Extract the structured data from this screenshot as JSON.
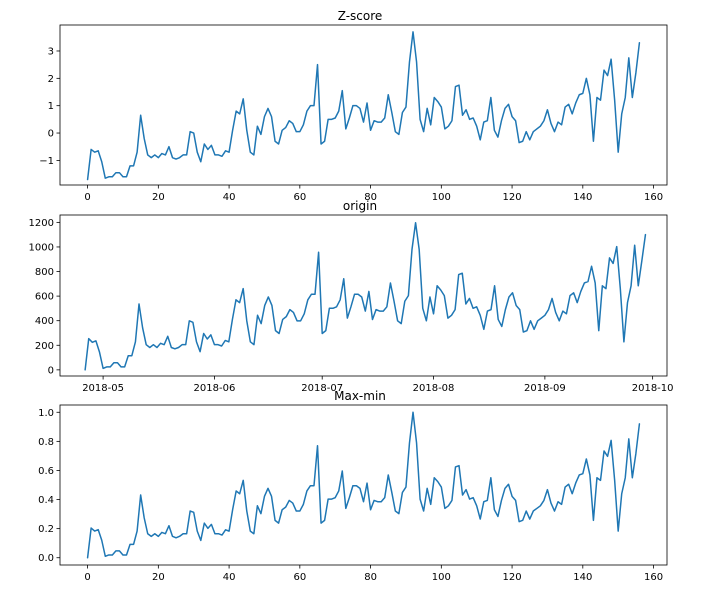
{
  "chart_data": [
    {
      "type": "line",
      "title": "Z-score",
      "xlabel": "",
      "ylabel": "",
      "xlim": [
        -7.8,
        163.8
      ],
      "ylim": [
        -1.9,
        3.95
      ],
      "xticks": [
        0,
        20,
        40,
        60,
        80,
        100,
        120,
        140,
        160
      ],
      "xtick_labels": [
        "0",
        "20",
        "40",
        "60",
        "80",
        "100",
        "120",
        "140",
        "160"
      ],
      "yticks": [
        -1,
        0,
        1,
        2,
        3
      ],
      "ytick_labels": [
        "−1",
        "0",
        "1",
        "2",
        "3"
      ],
      "grid": false,
      "color": "#1f77b4",
      "series": [
        {
          "x_start": 0,
          "x_step": 1,
          "values": [
            -1.7,
            -0.6,
            -0.7,
            -0.65,
            -1.05,
            -1.65,
            -1.6,
            -1.6,
            -1.45,
            -1.45,
            -1.6,
            -1.6,
            -1.2,
            -1.2,
            -0.7,
            0.65,
            -0.2,
            -0.8,
            -0.9,
            -0.8,
            -0.9,
            -0.75,
            -0.8,
            -0.5,
            -0.9,
            -0.95,
            -0.9,
            -0.8,
            -0.8,
            0.05,
            0.0,
            -0.7,
            -1.05,
            -0.4,
            -0.6,
            -0.45,
            -0.8,
            -0.8,
            -0.85,
            -0.65,
            -0.7,
            0.1,
            0.8,
            0.7,
            1.25,
            0.1,
            -0.7,
            -0.8,
            0.25,
            -0.05,
            0.6,
            0.9,
            0.6,
            -0.3,
            -0.4,
            0.1,
            0.2,
            0.45,
            0.35,
            0.05,
            0.05,
            0.3,
            0.8,
            1.0,
            1.0,
            2.5,
            -0.4,
            -0.3,
            0.5,
            0.5,
            0.55,
            0.8,
            1.55,
            0.15,
            0.55,
            1.0,
            1.0,
            0.9,
            0.4,
            1.1,
            0.1,
            0.45,
            0.4,
            0.4,
            0.55,
            1.4,
            0.75,
            0.05,
            -0.05,
            0.75,
            0.95,
            2.6,
            3.7,
            2.6,
            0.5,
            0.05,
            0.9,
            0.3,
            1.3,
            1.15,
            0.95,
            0.15,
            0.25,
            0.45,
            1.7,
            1.75,
            0.65,
            0.85,
            0.5,
            0.55,
            0.25,
            -0.25,
            0.4,
            0.45,
            1.3,
            0.1,
            -0.15,
            0.45,
            0.9,
            1.05,
            0.6,
            0.45,
            -0.35,
            -0.3,
            0.05,
            -0.25,
            0.05,
            0.15,
            0.25,
            0.45,
            0.85,
            0.35,
            0.05,
            0.4,
            0.3,
            0.95,
            1.05,
            0.7,
            1.1,
            1.4,
            1.45,
            2.0,
            1.4,
            -0.3,
            1.3,
            1.2,
            2.3,
            2.1,
            2.7,
            1.2,
            -0.7,
            0.7,
            1.3,
            2.75,
            1.3,
            2.2,
            3.3
          ]
        }
      ]
    },
    {
      "type": "line",
      "title": "origin",
      "xlabel": "",
      "ylabel": "",
      "x_type": "date",
      "xlim": [
        "2018-04-19",
        "2018-10-05"
      ],
      "ylim": [
        -50,
        1260
      ],
      "xticks": [
        "2018-05-01",
        "2018-06-01",
        "2018-07-01",
        "2018-08-01",
        "2018-09-01",
        "2018-10-01"
      ],
      "xtick_labels": [
        "2018-05",
        "2018-06",
        "2018-07",
        "2018-08",
        "2018-09",
        "2018-10"
      ],
      "yticks": [
        0,
        200,
        400,
        600,
        800,
        1000,
        1200
      ],
      "ytick_labels": [
        "0",
        "200",
        "400",
        "600",
        "800",
        "1000",
        "1200"
      ],
      "grid": false,
      "color": "#1f77b4",
      "series": [
        {
          "x_start": "2018-04-26",
          "x_step_days": 1,
          "values": [
            0,
            254,
            224,
            236,
            144,
            12,
            24,
            24,
            58,
            58,
            24,
            24,
            115,
            115,
            228,
            536,
            342,
            205,
            182,
            205,
            182,
            216,
            205,
            273,
            182,
            171,
            182,
            205,
            205,
            399,
            387,
            228,
            148,
            296,
            251,
            285,
            205,
            205,
            194,
            239,
            228,
            410,
            570,
            547,
            661,
            399,
            228,
            205,
            444,
            376,
            524,
            593,
            524,
            319,
            296,
            410,
            433,
            490,
            467,
            399,
            399,
            456,
            570,
            615,
            615,
            957,
            296,
            319,
            501,
            501,
            513,
            570,
            741,
            421,
            513,
            615,
            615,
            593,
            478,
            638,
            410,
            490,
            478,
            478,
            513,
            707,
            558,
            399,
            376,
            558,
            604,
            980,
            1197,
            980,
            501,
            399,
            593,
            456,
            684,
            650,
            604,
            421,
            444,
            490,
            775,
            786,
            536,
            581,
            501,
            513,
            444,
            330,
            478,
            490,
            684,
            410,
            353,
            490,
            593,
            627,
            524,
            490,
            308,
            319,
            399,
            330,
            399,
            421,
            444,
            490,
            581,
            467,
            399,
            478,
            456,
            604,
            627,
            547,
            638,
            707,
            718,
            843,
            707,
            319,
            684,
            661,
            911,
            866,
            1003,
            661,
            228,
            547,
            684,
            1014,
            684,
            889,
            1100
          ]
        }
      ]
    },
    {
      "type": "line",
      "title": "Max-min",
      "xlabel": "",
      "ylabel": "",
      "xlim": [
        -7.8,
        163.8
      ],
      "ylim": [
        -0.05,
        1.05
      ],
      "xticks": [
        0,
        20,
        40,
        60,
        80,
        100,
        120,
        140,
        160
      ],
      "xtick_labels": [
        "0",
        "20",
        "40",
        "60",
        "80",
        "100",
        "120",
        "140",
        "160"
      ],
      "yticks": [
        0.0,
        0.2,
        0.4,
        0.6,
        0.8,
        1.0
      ],
      "ytick_labels": [
        "0.0",
        "0.2",
        "0.4",
        "0.6",
        "0.8",
        "1.0"
      ],
      "grid": false,
      "color": "#1f77b4",
      "series": [
        {
          "x_start": 0,
          "x_step": 1,
          "values": [
            0.0,
            0.204,
            0.183,
            0.193,
            0.12,
            0.01,
            0.019,
            0.019,
            0.047,
            0.047,
            0.019,
            0.019,
            0.092,
            0.092,
            0.183,
            0.431,
            0.274,
            0.165,
            0.147,
            0.165,
            0.147,
            0.174,
            0.165,
            0.22,
            0.147,
            0.137,
            0.147,
            0.165,
            0.165,
            0.321,
            0.312,
            0.183,
            0.119,
            0.238,
            0.202,
            0.229,
            0.165,
            0.165,
            0.156,
            0.192,
            0.183,
            0.33,
            0.459,
            0.44,
            0.532,
            0.321,
            0.183,
            0.165,
            0.357,
            0.303,
            0.422,
            0.477,
            0.422,
            0.257,
            0.238,
            0.33,
            0.348,
            0.394,
            0.376,
            0.321,
            0.321,
            0.367,
            0.459,
            0.495,
            0.495,
            0.77,
            0.238,
            0.257,
            0.403,
            0.403,
            0.413,
            0.459,
            0.596,
            0.339,
            0.413,
            0.495,
            0.495,
            0.477,
            0.385,
            0.513,
            0.33,
            0.394,
            0.385,
            0.385,
            0.413,
            0.569,
            0.449,
            0.321,
            0.303,
            0.449,
            0.486,
            0.789,
            1.0,
            0.789,
            0.403,
            0.321,
            0.477,
            0.367,
            0.55,
            0.523,
            0.486,
            0.339,
            0.357,
            0.394,
            0.624,
            0.633,
            0.431,
            0.468,
            0.403,
            0.413,
            0.357,
            0.266,
            0.385,
            0.394,
            0.55,
            0.33,
            0.284,
            0.394,
            0.477,
            0.505,
            0.422,
            0.394,
            0.248,
            0.257,
            0.321,
            0.266,
            0.321,
            0.339,
            0.357,
            0.394,
            0.468,
            0.376,
            0.321,
            0.385,
            0.367,
            0.486,
            0.505,
            0.44,
            0.514,
            0.569,
            0.578,
            0.679,
            0.569,
            0.257,
            0.55,
            0.532,
            0.734,
            0.697,
            0.807,
            0.532,
            0.183,
            0.44,
            0.55,
            0.817,
            0.55,
            0.716,
            0.92
          ]
        }
      ]
    }
  ]
}
